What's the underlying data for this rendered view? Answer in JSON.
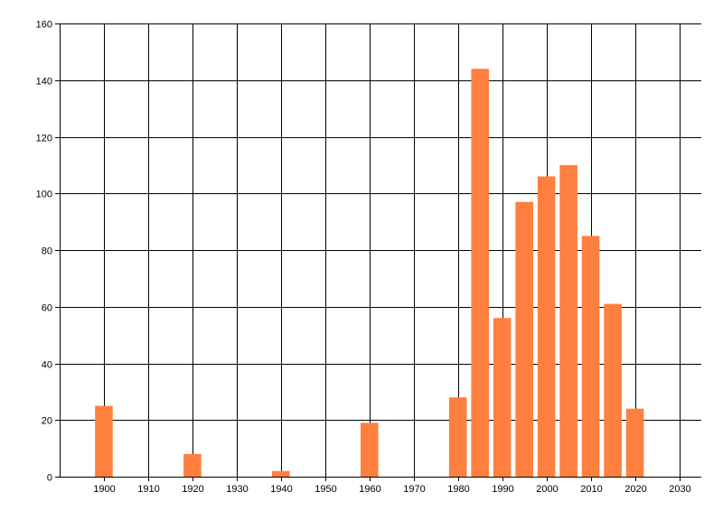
{
  "chart_data": {
    "type": "bar",
    "title": "",
    "xlabel": "",
    "ylabel": "",
    "x": [
      1900,
      1920,
      1940,
      1960,
      1980,
      1985,
      1990,
      1995,
      2000,
      2005,
      2010,
      2015,
      2020
    ],
    "values": [
      25,
      8,
      2,
      19,
      28,
      144,
      56,
      97,
      106,
      110,
      85,
      61,
      24
    ],
    "bar_width_years": 4,
    "xlim": [
      1890,
      2035
    ],
    "ylim": [
      0,
      160
    ],
    "xticks": [
      1900,
      1910,
      1920,
      1930,
      1940,
      1950,
      1960,
      1970,
      1980,
      1990,
      2000,
      2010,
      2020,
      2030
    ],
    "yticks": [
      0,
      20,
      40,
      60,
      80,
      100,
      120,
      140,
      160
    ],
    "grid": true,
    "legend": "none",
    "colors": {
      "bar": "#ff7f3f",
      "grid": "#000000",
      "axis": "#000000",
      "background": "#ffffff"
    }
  }
}
